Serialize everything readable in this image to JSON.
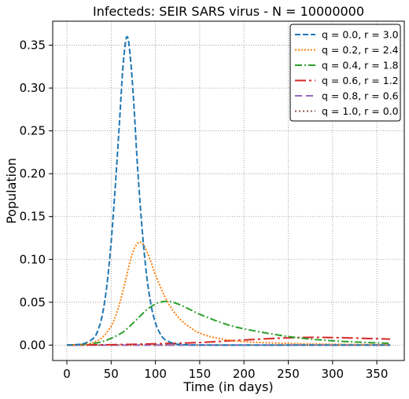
{
  "chart_data": {
    "type": "line",
    "title": "Infecteds: SEIR SARS virus -  N = 10000000",
    "xlabel": "Time (in days)",
    "ylabel": "Population",
    "xlim": [
      -16,
      381
    ],
    "ylim": [
      -0.018,
      0.378
    ],
    "xticks": [
      0,
      50,
      100,
      150,
      200,
      250,
      300,
      350
    ],
    "yticks": [
      0.0,
      0.05,
      0.1,
      0.15,
      0.2,
      0.25,
      0.3,
      0.35
    ],
    "xtick_labels": [
      "0",
      "50",
      "100",
      "150",
      "200",
      "250",
      "300",
      "350"
    ],
    "ytick_labels": [
      "0.00",
      "0.05",
      "0.10",
      "0.15",
      "0.20",
      "0.25",
      "0.30",
      "0.35"
    ],
    "grid": true,
    "legend_position": "top-right",
    "series": [
      {
        "name": "q = 0.0, r = 3.0",
        "color": "#1f77b4",
        "dash": "dashed",
        "x": [
          0,
          10,
          20,
          30,
          35,
          40,
          45,
          50,
          55,
          60,
          63,
          66,
          68,
          70,
          73,
          76,
          80,
          85,
          90,
          95,
          100,
          105,
          110,
          120,
          130,
          150,
          200,
          365
        ],
        "y": [
          0.0,
          0.0005,
          0.002,
          0.008,
          0.017,
          0.035,
          0.068,
          0.12,
          0.19,
          0.27,
          0.32,
          0.352,
          0.36,
          0.352,
          0.32,
          0.275,
          0.205,
          0.135,
          0.082,
          0.047,
          0.026,
          0.014,
          0.007,
          0.002,
          0.0006,
          0.0001,
          0.0,
          0.0
        ]
      },
      {
        "name": "q = 0.2, r = 2.4",
        "color": "#ff7f0e",
        "dash": "dotted",
        "x": [
          0,
          20,
          30,
          40,
          50,
          55,
          60,
          65,
          70,
          75,
          80,
          83,
          86,
          90,
          95,
          100,
          110,
          120,
          130,
          140,
          150,
          170,
          200,
          250,
          300,
          365
        ],
        "y": [
          0.0,
          0.001,
          0.003,
          0.009,
          0.022,
          0.034,
          0.05,
          0.07,
          0.092,
          0.11,
          0.119,
          0.12,
          0.118,
          0.11,
          0.097,
          0.082,
          0.058,
          0.04,
          0.028,
          0.02,
          0.014,
          0.008,
          0.004,
          0.002,
          0.001,
          0.0005
        ]
      },
      {
        "name": "q = 0.4, r = 1.8",
        "color": "#2ca02c",
        "dash": "dashdot",
        "x": [
          0,
          20,
          40,
          60,
          70,
          80,
          90,
          100,
          105,
          110,
          115,
          120,
          130,
          140,
          150,
          175,
          200,
          250,
          300,
          365
        ],
        "y": [
          0.0,
          0.001,
          0.004,
          0.013,
          0.021,
          0.031,
          0.041,
          0.048,
          0.05,
          0.051,
          0.051,
          0.05,
          0.046,
          0.041,
          0.036,
          0.026,
          0.019,
          0.01,
          0.005,
          0.002
        ]
      },
      {
        "name": "q = 0.6, r = 1.2",
        "color": "#d62728",
        "dash": "longdash",
        "x": [
          0,
          50,
          100,
          150,
          200,
          250,
          280,
          300,
          330,
          365
        ],
        "y": [
          0.0,
          0.0005,
          0.0015,
          0.003,
          0.006,
          0.0085,
          0.009,
          0.0088,
          0.008,
          0.007
        ]
      },
      {
        "name": "q = 0.8, r = 0.6",
        "color": "#9467bd",
        "dash": "dashed2",
        "x": [
          0,
          365
        ],
        "y": [
          0.0,
          0.0
        ]
      },
      {
        "name": "q = 1.0, r = 0.0",
        "color": "#8c564b",
        "dash": "dotted2",
        "x": [
          0,
          365
        ],
        "y": [
          0.0,
          0.0
        ]
      }
    ]
  }
}
